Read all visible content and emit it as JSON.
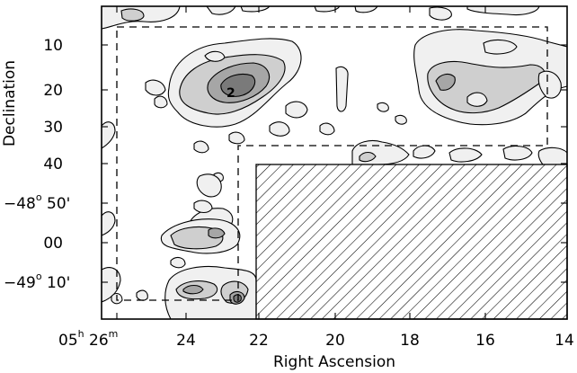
{
  "figure": {
    "xlabel": "Right Ascension",
    "ylabel": "Declination",
    "x_ticks": [
      {
        "pre": "05",
        "sup1": "h",
        "mid": " 26",
        "sup2": "m"
      },
      {
        "pre": "24"
      },
      {
        "pre": "22"
      },
      {
        "pre": "20"
      },
      {
        "pre": "18"
      },
      {
        "pre": "16"
      },
      {
        "pre": "14"
      }
    ],
    "y_ticks": [
      {
        "pre": "10"
      },
      {
        "pre": "20"
      },
      {
        "pre": "30"
      },
      {
        "pre": "40"
      },
      {
        "pre": "−48",
        "sup1": "o",
        "mid": " 50'"
      },
      {
        "pre": "00"
      },
      {
        "pre": "−49",
        "sup1": "o",
        "mid": " 10'"
      }
    ],
    "peak_label": "2",
    "colors": {
      "level1": "#f0f0f0",
      "level2": "#cfcfcf",
      "level3": "#a6a6a6",
      "level4": "#7a7a7a",
      "hatch": "#000000"
    }
  }
}
